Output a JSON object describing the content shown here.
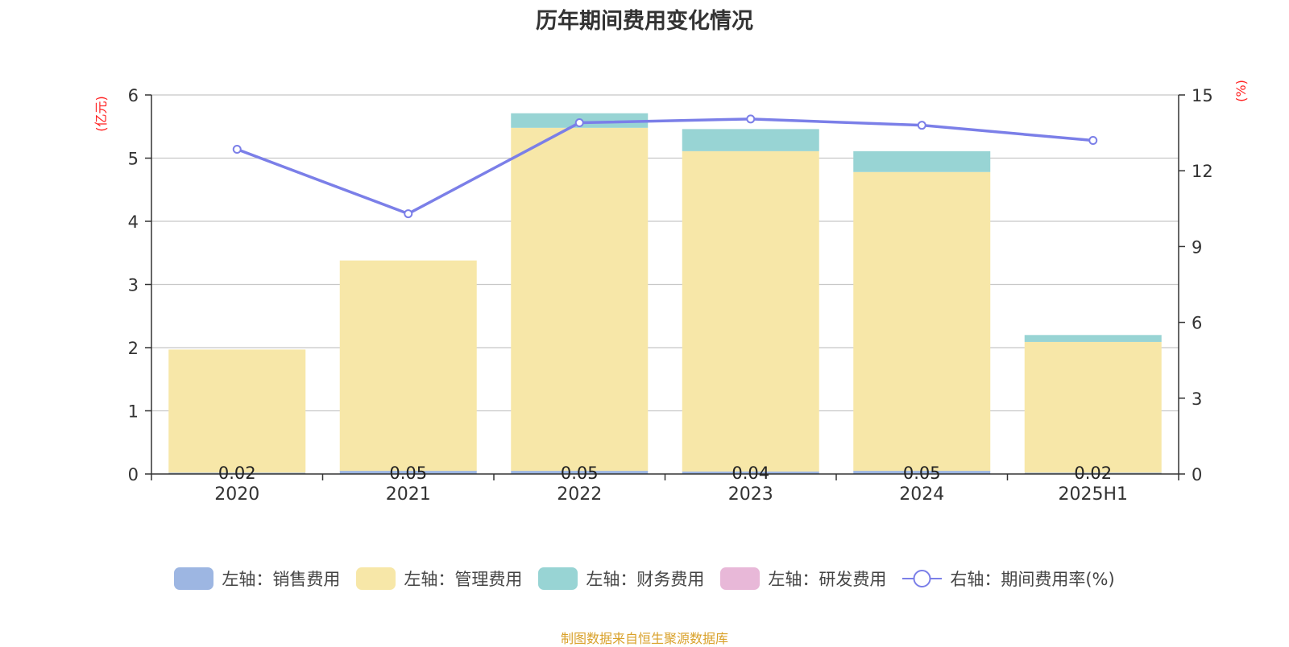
{
  "chart_data": {
    "type": "bar",
    "title": "历年期间费用变化情况",
    "categories": [
      "2020",
      "2021",
      "2022",
      "2023",
      "2024",
      "2025H1"
    ],
    "left_axis": {
      "unit": "(亿元)",
      "ylim": [
        0,
        6
      ],
      "ticks": [
        "0",
        "1",
        "2",
        "3",
        "4",
        "5",
        "6"
      ]
    },
    "right_axis": {
      "unit": "(%)",
      "ylim": [
        0,
        15
      ],
      "ticks": [
        "0",
        "3",
        "6",
        "9",
        "12",
        "15"
      ]
    },
    "series": [
      {
        "name": "左轴：销售费用",
        "axis": "left",
        "stack": "cost",
        "color": "#9db6e2",
        "values": [
          0.02,
          0.05,
          0.05,
          0.04,
          0.05,
          0.02
        ],
        "labels": [
          "0.02",
          "0.05",
          "0.05",
          "0.04",
          "0.05",
          "0.02"
        ]
      },
      {
        "name": "左轴：管理费用",
        "axis": "left",
        "stack": "cost",
        "color": "#f7e7a8",
        "values": [
          1.95,
          3.33,
          5.43,
          5.07,
          4.73,
          2.07
        ]
      },
      {
        "name": "左轴：财务费用",
        "axis": "left",
        "stack": "cost",
        "color": "#98d4d4",
        "values": [
          0.0,
          0.0,
          0.23,
          0.35,
          0.33,
          0.11
        ]
      },
      {
        "name": "左轴：研发费用",
        "axis": "left",
        "stack": "cost",
        "color": "#e8b8d8",
        "values": [
          0,
          0,
          0,
          0,
          0,
          0
        ]
      },
      {
        "name": "右轴：期间费用率(%)",
        "axis": "right",
        "type": "line",
        "color": "#7b7fe8",
        "values": [
          12.85,
          10.3,
          13.9,
          14.05,
          13.8,
          13.2
        ]
      }
    ],
    "grid": true,
    "legend_position": "bottom"
  },
  "source_note": "制图数据来自恒生聚源数据库"
}
